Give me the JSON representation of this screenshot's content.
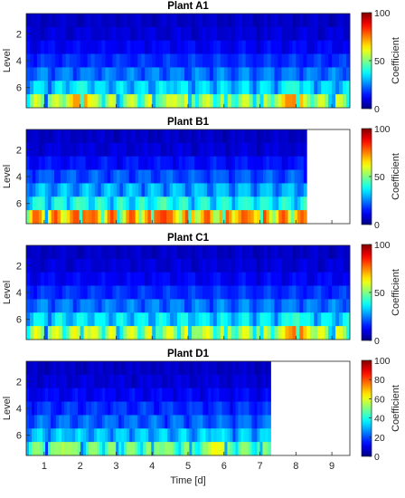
{
  "chart_data": {
    "type": "heatmap",
    "x_label": "Time [d]",
    "x_ticks": [
      1,
      2,
      3,
      4,
      5,
      6,
      7,
      8,
      9
    ],
    "x_range": [
      0.5,
      9.5
    ],
    "y_label": "Level",
    "y_ticks": [
      2,
      4,
      6
    ],
    "levels": [
      1,
      2,
      3,
      4,
      5,
      6,
      7
    ],
    "colorbar_label": "Coefficient",
    "colormap": "jet",
    "panels": [
      {
        "title": "Plant A1",
        "days": 9,
        "colorbar_range": [
          0,
          100
        ],
        "colorbar_ticks": [
          0,
          50,
          100
        ],
        "peak_by_level": [
          6,
          8,
          12,
          18,
          26,
          36,
          58
        ],
        "hotspots_day": [
          2.0,
          4.6,
          7.9
        ],
        "hotspot_values": [
          72,
          56,
          74
        ]
      },
      {
        "title": "Plant B1",
        "days": 7.8,
        "colorbar_range": [
          0,
          100
        ],
        "colorbar_ticks": [
          0,
          50,
          100
        ],
        "peak_by_level": [
          6,
          8,
          14,
          22,
          32,
          42,
          78
        ],
        "hotspots_day": [
          2.0,
          4.3,
          6.6
        ],
        "hotspot_values": [
          78,
          80,
          74
        ]
      },
      {
        "title": "Plant C1",
        "days": 9,
        "colorbar_range": [
          0,
          100
        ],
        "colorbar_ticks": [
          0,
          50,
          100
        ],
        "peak_by_level": [
          6,
          8,
          12,
          18,
          26,
          38,
          60
        ],
        "hotspots_day": [
          2.1,
          5.2,
          8.0
        ],
        "hotspot_values": [
          58,
          50,
          76
        ]
      },
      {
        "title": "Plant D1",
        "days": 6.8,
        "colorbar_range": [
          0,
          100
        ],
        "colorbar_ticks": [
          0,
          20,
          40,
          60,
          80,
          100
        ],
        "peak_by_level": [
          6,
          8,
          12,
          18,
          24,
          34,
          52
        ],
        "hotspots_day": [
          1.6,
          4.2,
          5.8
        ],
        "hotspot_values": [
          52,
          48,
          60
        ]
      }
    ]
  }
}
